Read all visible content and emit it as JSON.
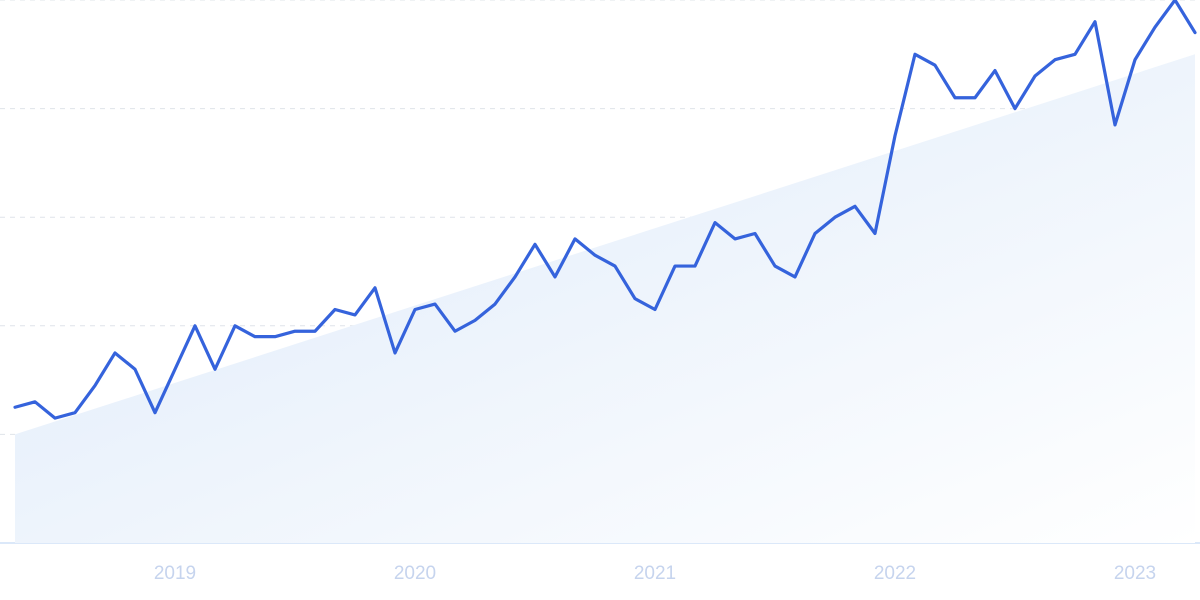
{
  "chart_data": {
    "type": "line",
    "categories": [
      null,
      null,
      null,
      null,
      null,
      null,
      null,
      null,
      "2019",
      null,
      null,
      null,
      null,
      null,
      null,
      null,
      null,
      null,
      null,
      null,
      "2020",
      null,
      null,
      null,
      null,
      null,
      null,
      null,
      null,
      null,
      null,
      null,
      "2021",
      null,
      null,
      null,
      null,
      null,
      null,
      null,
      null,
      null,
      null,
      null,
      "2022",
      null,
      null,
      null,
      null,
      null,
      null,
      null,
      null,
      null,
      null,
      null,
      "2023",
      null,
      null,
      null
    ],
    "values": [
      25,
      26,
      23,
      24,
      29,
      35,
      32,
      24,
      32,
      40,
      32,
      40,
      38,
      38,
      39,
      39,
      43,
      42,
      47,
      35,
      43,
      44,
      39,
      41,
      44,
      49,
      55,
      49,
      56,
      53,
      51,
      45,
      43,
      51,
      51,
      59,
      56,
      57,
      51,
      49,
      57,
      60,
      62,
      57,
      75,
      90,
      88,
      82,
      82,
      87,
      80,
      86,
      89,
      90,
      96,
      77,
      89,
      95,
      100,
      94
    ],
    "color": "#3563dc",
    "trend": [
      20,
      90
    ],
    "trend_color": "#dce9f9",
    "ylim": [
      0,
      100
    ],
    "yticks": [
      0,
      20,
      40,
      60,
      80,
      100
    ],
    "grid": true
  }
}
